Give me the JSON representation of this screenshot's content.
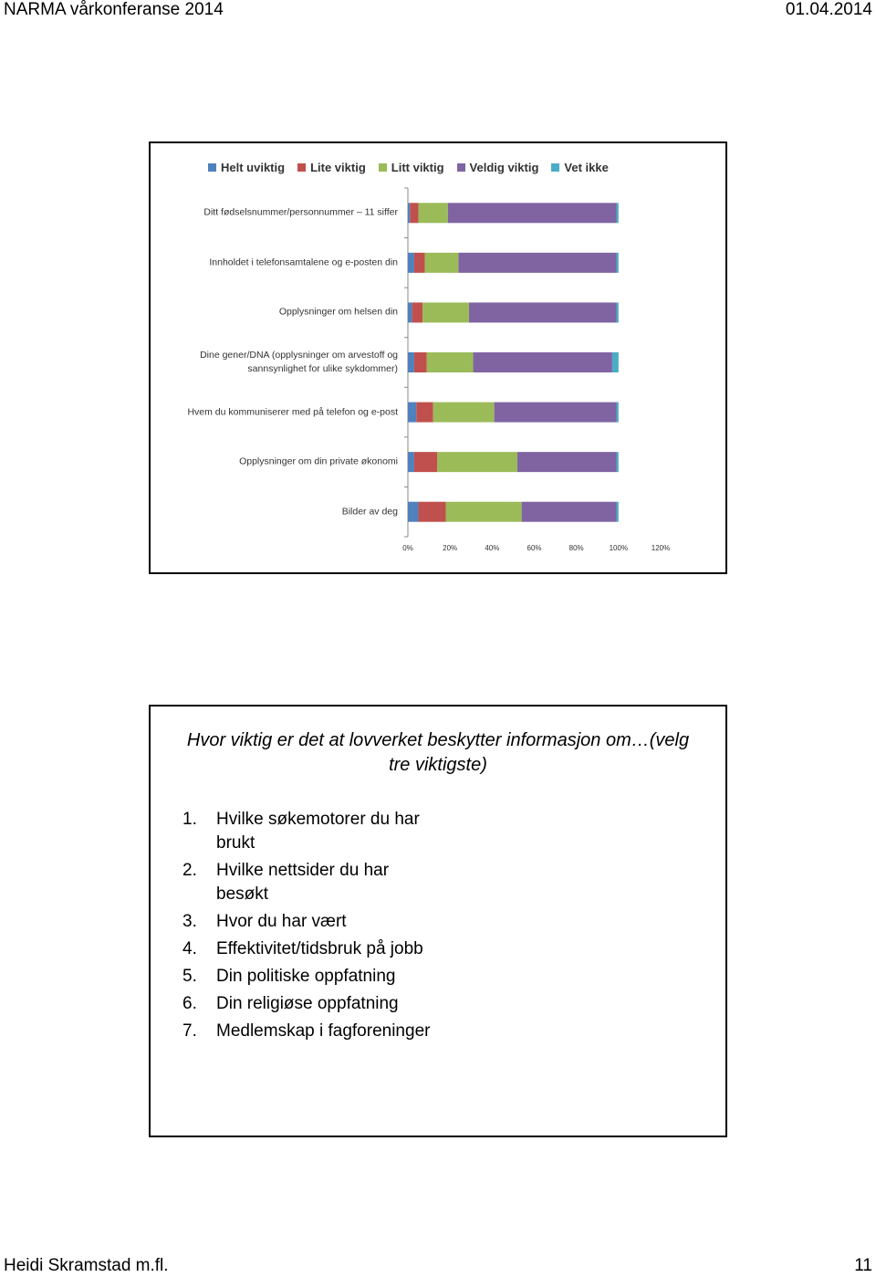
{
  "header": {
    "title": "NARMA vårkonferanse 2014",
    "date": "01.04.2014"
  },
  "chart_data": {
    "type": "stacked-bar-horizontal",
    "categories": [
      "Ditt fødselsnummer/personnummer – 11 siffer",
      "Innholdet i telefonsamtalene og e-posten din",
      "Opplysninger om helsen din",
      "Dine gener/DNA (opplysninger om arvestoff og\nsannsynlighet for ulike sykdommer)",
      "Hvem du kommuniserer med på telefon og e-post",
      "Opplysninger om din private økonomi",
      "Bilder av deg"
    ],
    "series": [
      {
        "name": "Helt uviktig",
        "color": "#4f81bd",
        "values": [
          1,
          3,
          2,
          3,
          4,
          3,
          5
        ]
      },
      {
        "name": "Lite viktig",
        "color": "#c0504d",
        "values": [
          4,
          5,
          5,
          6,
          8,
          11,
          13
        ]
      },
      {
        "name": "Litt viktig",
        "color": "#9bbb59",
        "values": [
          14,
          16,
          22,
          22,
          29,
          38,
          36
        ]
      },
      {
        "name": "Veldig viktig",
        "color": "#8064a2",
        "values": [
          80,
          75,
          70,
          66,
          58,
          47,
          45
        ]
      },
      {
        "name": "Vet ikke",
        "color": "#4bacc6",
        "values": [
          1,
          1,
          1,
          3,
          1,
          1,
          1
        ]
      }
    ],
    "xlim": [
      0,
      120
    ],
    "xticks": [
      {
        "value": 0,
        "label": "0%"
      },
      {
        "value": 20,
        "label": "20%"
      },
      {
        "value": 40,
        "label": "40%"
      },
      {
        "value": 60,
        "label": "60%"
      },
      {
        "value": 80,
        "label": "80%"
      },
      {
        "value": 100,
        "label": "100%"
      },
      {
        "value": 120,
        "label": "120%"
      }
    ],
    "legend": "top"
  },
  "slide": {
    "title": "Hvor viktig er det at lovverket beskytter informasjon om…(velg tre viktigste)",
    "items": [
      {
        "number": "1.",
        "text": "Hvilke søkemotorer du har brukt"
      },
      {
        "number": "2.",
        "text": "Hvilke nettsider du har besøkt"
      },
      {
        "number": "3.",
        "text": "Hvor du har vært"
      },
      {
        "number": "4.",
        "text": "Effektivitet/tidsbruk på jobb"
      },
      {
        "number": "5.",
        "text": "Din politiske oppfatning"
      },
      {
        "number": "6.",
        "text": "Din religiøse oppfatning"
      },
      {
        "number": "7.",
        "text": "Medlemskap i fagforeninger"
      }
    ]
  },
  "footer": {
    "author": "Heidi Skramstad m.fl.",
    "page": "11"
  }
}
